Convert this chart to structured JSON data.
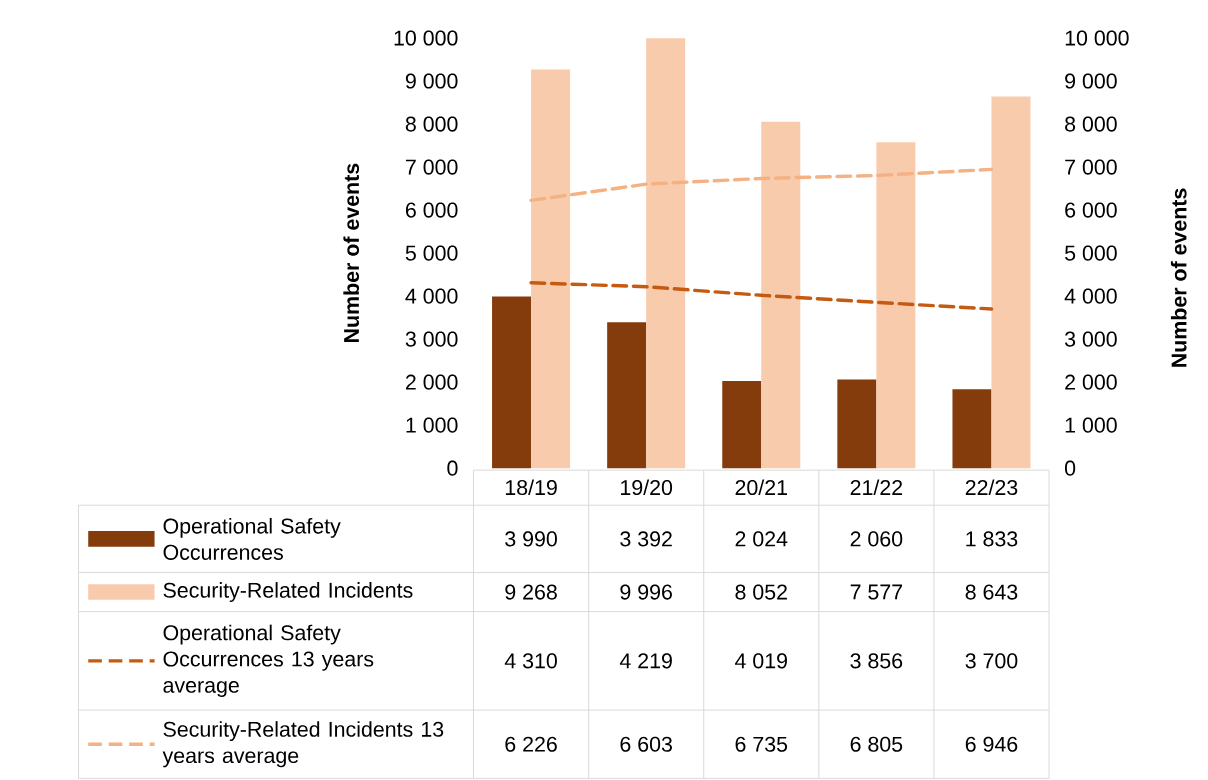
{
  "chart_data": {
    "type": "bar",
    "ylabel": "Number of events",
    "y2label": "Number of events",
    "categories": [
      "18/19",
      "19/20",
      "20/21",
      "21/22",
      "22/23"
    ],
    "ylim": [
      0,
      10000
    ],
    "y2lim": [
      0,
      10000
    ],
    "yticks": [
      {
        "value": 0,
        "label": "0"
      },
      {
        "value": 1000,
        "label": "1 000"
      },
      {
        "value": 2000,
        "label": "2 000"
      },
      {
        "value": 3000,
        "label": "3 000"
      },
      {
        "value": 4000,
        "label": "4 000"
      },
      {
        "value": 5000,
        "label": "5 000"
      },
      {
        "value": 6000,
        "label": "6 000"
      },
      {
        "value": 7000,
        "label": "7 000"
      },
      {
        "value": 8000,
        "label": "8 000"
      },
      {
        "value": 9000,
        "label": "9 000"
      },
      {
        "value": 10000,
        "label": "10 000"
      }
    ],
    "y2ticks": [
      {
        "value": 0,
        "label": "0"
      },
      {
        "value": 1000,
        "label": "1 000"
      },
      {
        "value": 2000,
        "label": "2 000"
      },
      {
        "value": 3000,
        "label": "3 000"
      },
      {
        "value": 4000,
        "label": "4 000"
      },
      {
        "value": 5000,
        "label": "5 000"
      },
      {
        "value": 6000,
        "label": "6 000"
      },
      {
        "value": 7000,
        "label": "7 000"
      },
      {
        "value": 8000,
        "label": "8 000"
      },
      {
        "value": 9000,
        "label": "9 000"
      },
      {
        "value": 10000,
        "label": "10 000"
      }
    ],
    "legend": "bottom",
    "grid": false,
    "series": [
      {
        "name": "Operational Safety Occurrences",
        "color": "#843c0c",
        "values": [
          3990,
          3392,
          2024,
          2060,
          1833
        ],
        "value_labels": [
          "3 990",
          "3 392",
          "2 024",
          "2 060",
          "1 833"
        ]
      },
      {
        "name": "Security-Related Incidents",
        "color": "#f8cbad",
        "values": [
          9268,
          9996,
          8052,
          7577,
          8643
        ],
        "value_labels": [
          "9 268",
          "9 996",
          "8 052",
          "7 577",
          "8 643"
        ]
      },
      {
        "name": "Operational Safety Occurrences 13 years average",
        "type": "line",
        "line_style": "dashed",
        "marker": "none",
        "color": "#c55a11",
        "values": [
          4310,
          4219,
          4019,
          3856,
          3700
        ],
        "value_labels": [
          "4 310",
          "4 219",
          "4 019",
          "3 856",
          "3 700"
        ]
      },
      {
        "name": "Security-Related Incidents 13 years  average",
        "type": "line",
        "line_style": "dashed",
        "marker": "none",
        "color": "#f4b183",
        "values": [
          6226,
          6603,
          6735,
          6805,
          6946
        ],
        "value_labels": [
          "6 226",
          "6 603",
          "6 735",
          "6 805",
          "6 946"
        ]
      }
    ]
  }
}
